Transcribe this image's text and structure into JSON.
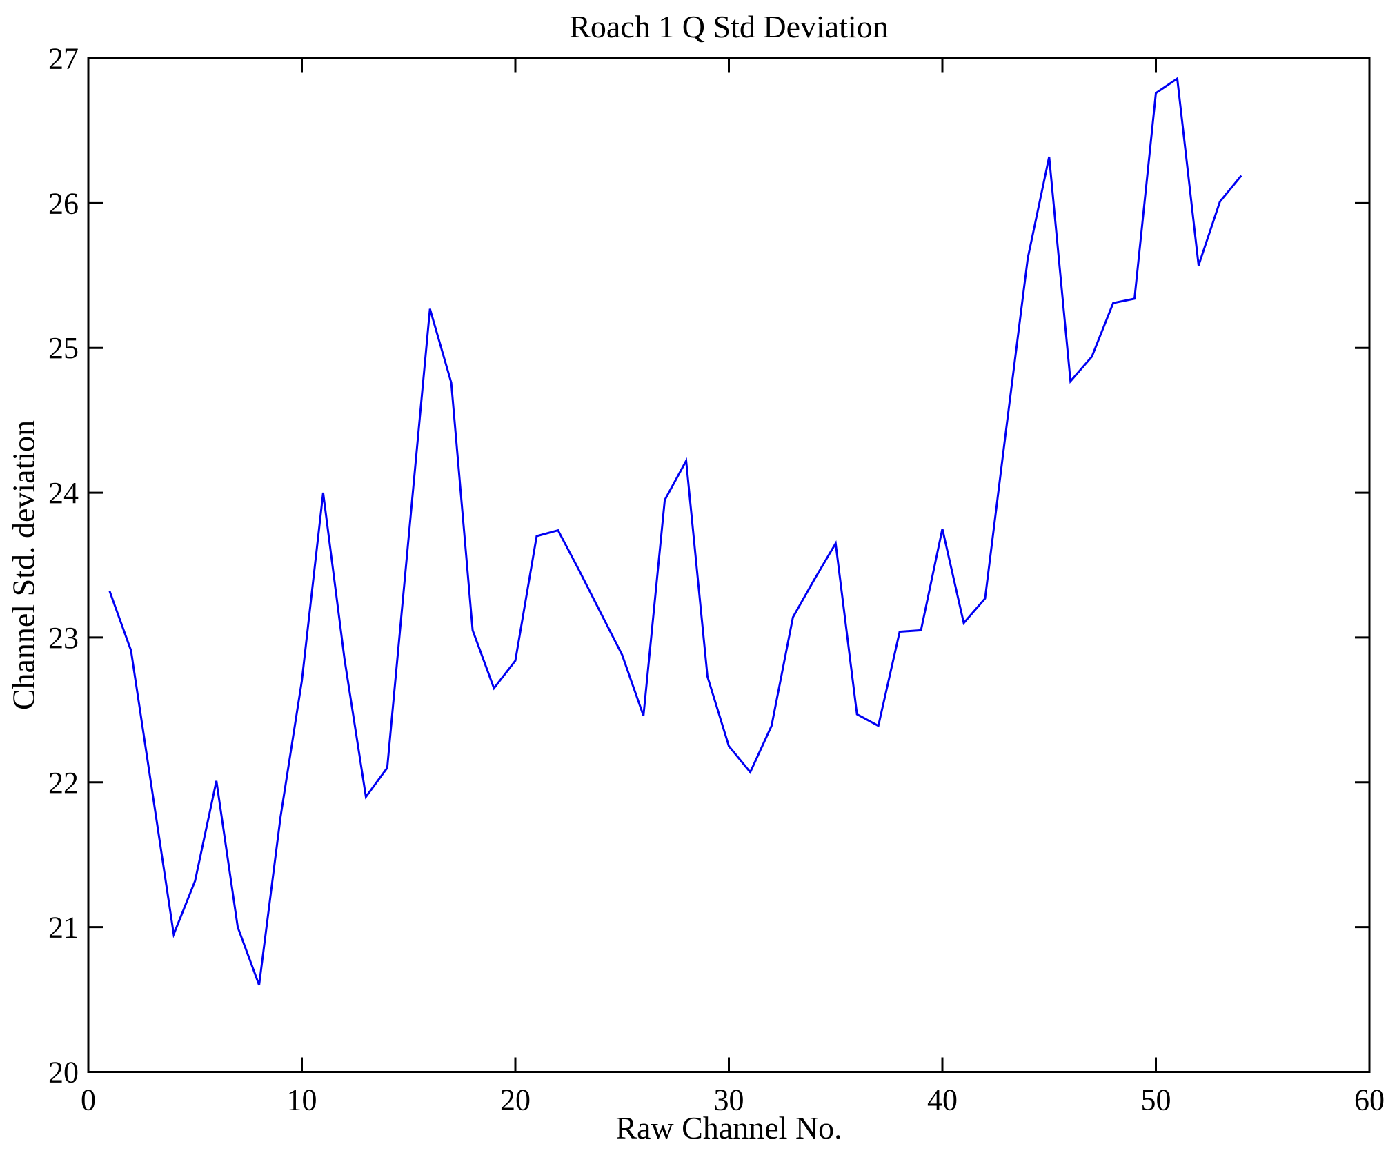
{
  "chart_data": {
    "type": "line",
    "title": "Roach 1 Q Std Deviation",
    "xlabel": "Raw Channel No.",
    "ylabel": "Channel Std. deviation",
    "xlim": [
      0,
      60
    ],
    "ylim": [
      20,
      27
    ],
    "xticks": [
      0,
      10,
      20,
      30,
      40,
      50,
      60
    ],
    "yticks": [
      20,
      21,
      22,
      23,
      24,
      25,
      26,
      27
    ],
    "grid": false,
    "legend": "none",
    "line_color": "#0000f2",
    "axis_color": "#000000",
    "x": [
      1,
      2,
      3,
      4,
      5,
      6,
      7,
      8,
      9,
      10,
      11,
      12,
      13,
      14,
      15,
      16,
      17,
      18,
      19,
      20,
      21,
      22,
      23,
      24,
      25,
      26,
      27,
      28,
      29,
      30,
      31,
      32,
      33,
      34,
      35,
      36,
      37,
      38,
      39,
      40,
      41,
      42,
      43,
      44,
      45,
      46,
      47,
      48,
      49,
      50,
      51,
      52,
      53,
      54
    ],
    "y": [
      23.32,
      22.91,
      21.93,
      20.95,
      21.32,
      22.01,
      21.0,
      20.6,
      21.76,
      22.7,
      24.0,
      22.85,
      21.9,
      22.1,
      23.69,
      25.27,
      24.76,
      23.05,
      22.65,
      22.84,
      23.7,
      23.74,
      23.46,
      23.17,
      22.88,
      22.46,
      23.95,
      24.22,
      22.73,
      22.25,
      22.07,
      22.39,
      23.14,
      23.4,
      23.65,
      22.47,
      22.39,
      23.04,
      23.05,
      23.75,
      23.1,
      23.27,
      24.45,
      25.62,
      26.32,
      24.77,
      24.94,
      25.31,
      25.34,
      26.76,
      26.86,
      25.57,
      26.01,
      26.19
    ]
  }
}
